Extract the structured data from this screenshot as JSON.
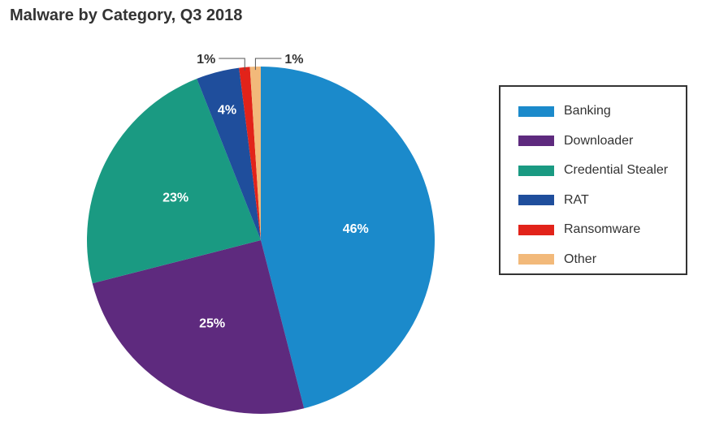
{
  "chart_data": {
    "type": "pie",
    "title": "Malware by Category, Q3 2018",
    "categories": [
      "Banking",
      "Downloader",
      "Credential Stealer",
      "RAT",
      "Ransomware",
      "Other"
    ],
    "values": [
      46,
      25,
      23,
      4,
      1,
      1
    ],
    "labels": [
      "46%",
      "25%",
      "23%",
      "4%",
      "1%",
      "1%"
    ],
    "colors": [
      "#1b8acb",
      "#5e2a7e",
      "#1a9a82",
      "#1f4e9c",
      "#e2231a",
      "#f2b97a"
    ],
    "legend_position": "right"
  }
}
